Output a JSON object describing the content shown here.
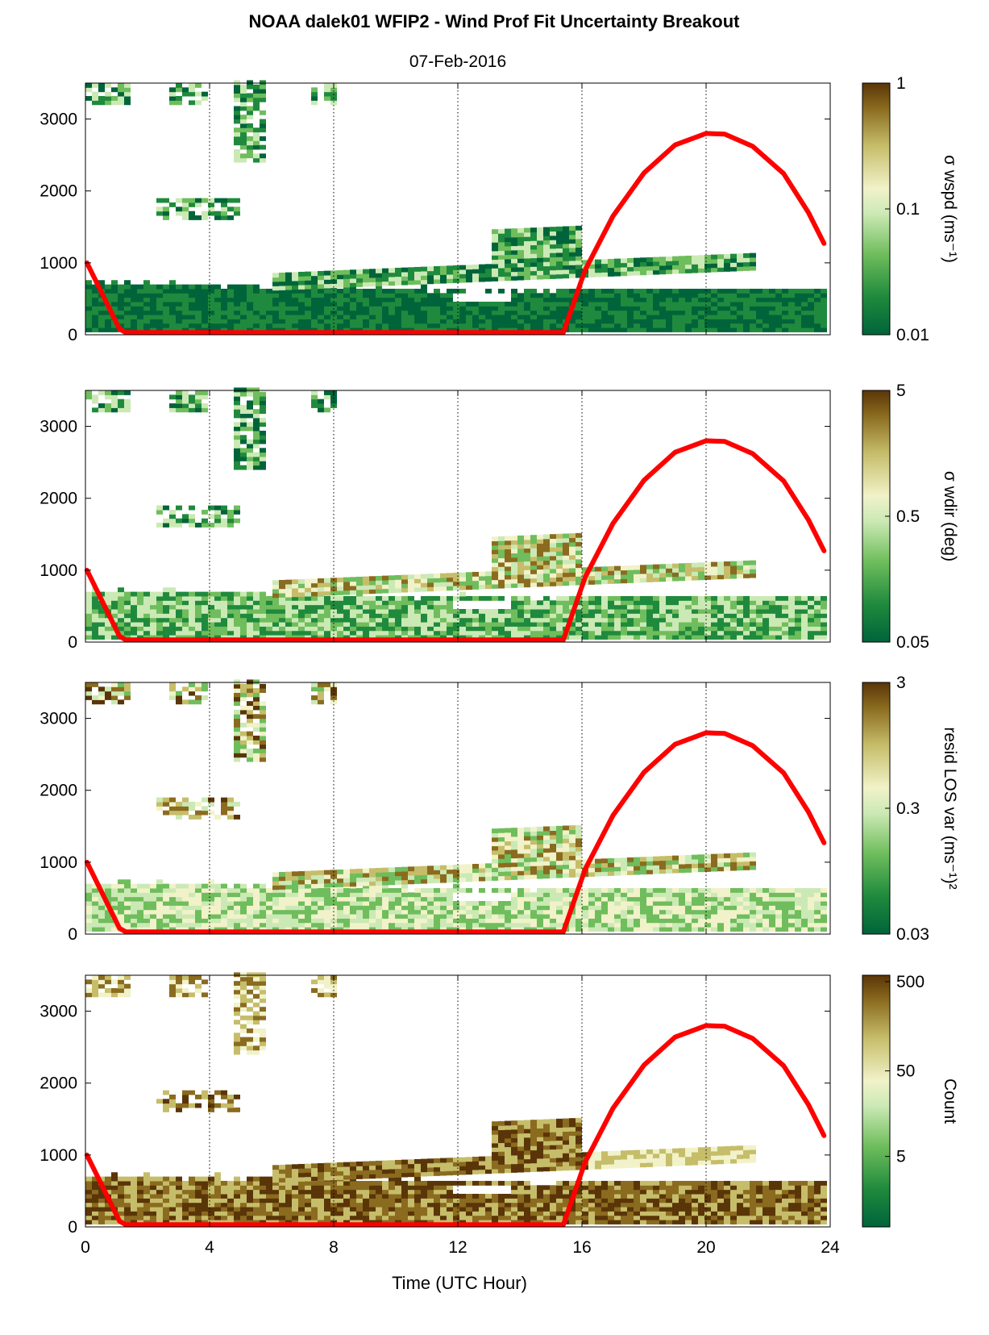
{
  "chart_data": {
    "type": "heatmap",
    "title": "NOAA dalek01 WFIP2 - Wind Prof Fit Uncertainty Breakout",
    "subtitle": "07-Feb-2016",
    "xlabel": "Time (UTC Hour)",
    "xlim": [
      0,
      24
    ],
    "xticks": [
      "0",
      "4",
      "8",
      "12",
      "16",
      "20",
      "24"
    ],
    "ylim": [
      0,
      3500
    ],
    "yticks": [
      "0",
      "1000",
      "2000",
      "3000"
    ],
    "grid": "vertical dotted lines at 4-hour intervals",
    "colormap": [
      "#00643a",
      "#1f8a3d",
      "#6fbd5c",
      "#cbe9b5",
      "#f1f2c9",
      "#c6bd6a",
      "#8a6b1f",
      "#5a3508"
    ],
    "overlay_line": {
      "color": "#ff0000",
      "points": [
        [
          0.05,
          1000
        ],
        [
          1.1,
          80
        ],
        [
          1.3,
          30
        ],
        [
          15.4,
          30
        ],
        [
          16.1,
          900
        ],
        [
          17.0,
          1650
        ],
        [
          18.0,
          2250
        ],
        [
          19.0,
          2640
        ],
        [
          20.0,
          2800
        ],
        [
          20.6,
          2790
        ],
        [
          21.5,
          2620
        ],
        [
          22.5,
          2240
        ],
        [
          23.3,
          1700
        ],
        [
          23.8,
          1270
        ]
      ]
    },
    "panels": [
      {
        "colorbar_label": "σ wspd (ms⁻¹)",
        "scale": "log",
        "clim": [
          "0.01",
          "1"
        ],
        "cticks": [
          "1",
          "0.1",
          "0.01"
        ]
      },
      {
        "colorbar_label": "σ wdir (deg)",
        "scale": "log",
        "clim": [
          "0.05",
          "5"
        ],
        "cticks": [
          "5",
          "0.5",
          "0.05"
        ]
      },
      {
        "colorbar_label": "resid LOS var (ms⁻¹)²",
        "scale": "log",
        "clim": [
          "0.03",
          "3"
        ],
        "cticks": [
          "3",
          "0.3",
          "0.03"
        ]
      },
      {
        "colorbar_label": "Count",
        "scale": "log",
        "clim": [
          "",
          "500"
        ],
        "cticks": [
          "500",
          "50",
          "5"
        ]
      }
    ]
  }
}
